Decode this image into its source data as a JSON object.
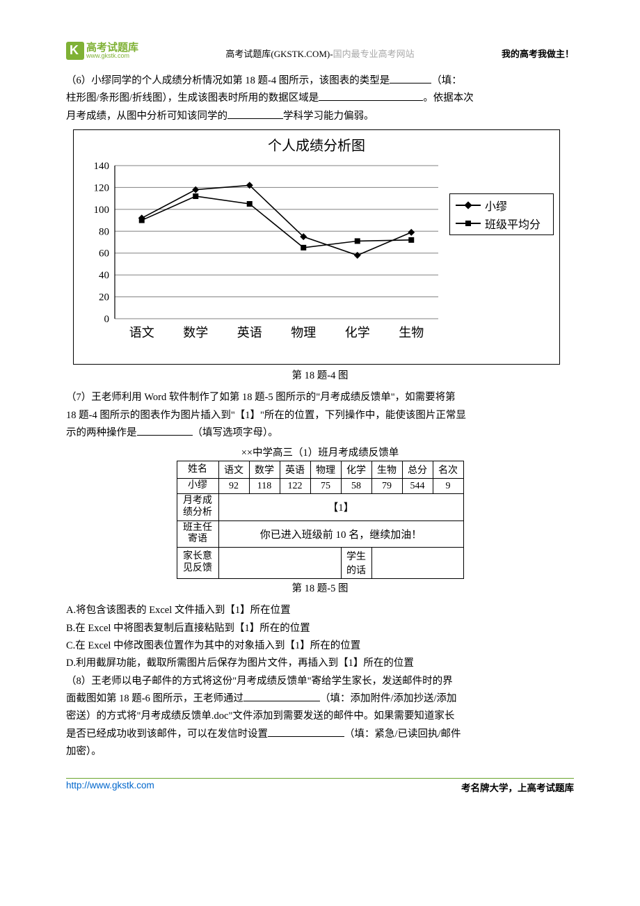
{
  "header": {
    "logo_cn": "高考试题库",
    "logo_url": "www.gkstk.com",
    "center_black": "高考试题库(GKSTK.COM)-",
    "center_gray": "国内最专业高考网站",
    "right": "我的高考我做主！"
  },
  "q6": {
    "line1_a": "（6）小缪同学的个人成绩分析情况如第 18 题-4 图所示，该图表的类型是",
    "line1_b": "（填：",
    "line2_a": "柱形图/条形图/折线图），生成该图表时所用的数据区域是",
    "line2_b": "。依据本次",
    "line3_a": "月考成绩，从图中分析可知该同学的",
    "line3_b": "学科学习能力偏弱。"
  },
  "chart": {
    "title": "个人成绩分析图",
    "categories": [
      "语文",
      "数学",
      "英语",
      "物理",
      "化学",
      "生物"
    ],
    "series": [
      {
        "name": "小缪",
        "marker": "diamond",
        "values": [
          92,
          118,
          122,
          75,
          58,
          79
        ]
      },
      {
        "name": "班级平均分",
        "marker": "square",
        "values": [
          90,
          112,
          105,
          65,
          71,
          72
        ]
      }
    ],
    "ylim": [
      0,
      140
    ],
    "ytick_step": 20,
    "grid_color": "#808080",
    "caption": "第 18 题-4 图"
  },
  "q7": {
    "p1": "（7）王老师利用 Word 软件制作了如第 18 题-5 图所示的\"月考成绩反馈单\"，如需要将第",
    "p2": "18 题-4 图所示的图表作为图片插入到\"【1】\"所在的位置，下列操作中，能使该图片正常显",
    "p3a": "示的两种操作是",
    "p3b": "（填写选项字母）。"
  },
  "feedback": {
    "title": "××中学高三（1）班月考成绩反馈单",
    "head": [
      "姓名",
      "语文",
      "数学",
      "英语",
      "物理",
      "化学",
      "生物",
      "总分",
      "名次"
    ],
    "row": [
      "小缪",
      "92",
      "118",
      "122",
      "75",
      "58",
      "79",
      "544",
      "9"
    ],
    "r3_label": "月考成\n绩分析",
    "r3_content": "【1】",
    "r4_label": "班主任\n寄语",
    "r4_content": "你已进入班级前 10 名，继续加油！",
    "r5_label": "家长意\n见反馈",
    "r5_mid": "学生\n的话",
    "caption": "第 18 题-5 图"
  },
  "options": {
    "A": "A.将包含该图表的 Excel 文件插入到【1】所在位置",
    "B": "B.在 Excel 中将图表复制后直接粘贴到【1】所在的位置",
    "C": "C.在 Excel 中修改图表位置作为其中的对象插入到【1】所在的位置",
    "D": "D.利用截屏功能，截取所需图片后保存为图片文件，再插入到【1】所在的位置"
  },
  "q8": {
    "l1": "（8）王老师以电子邮件的方式将这份\"月考成绩反馈单\"寄给学生家长，发送邮件时的界",
    "l2a": "面截图如第 18 题-6 图所示，王老师通过",
    "l2b": "（填：添加附件/添加抄送/添加",
    "l3": "密送）的方式将\"月考成绩反馈单.doc\"文件添加到需要发送的邮件中。如果需要知道家长",
    "l4a": "是否已经成功收到该邮件，可以在发信时设置",
    "l4b": "（填：紧急/已读回执/邮件",
    "l5": "加密）。"
  },
  "footer": {
    "left": "http://www.gkstk.com",
    "right": "考名牌大学，上高考试题库"
  }
}
